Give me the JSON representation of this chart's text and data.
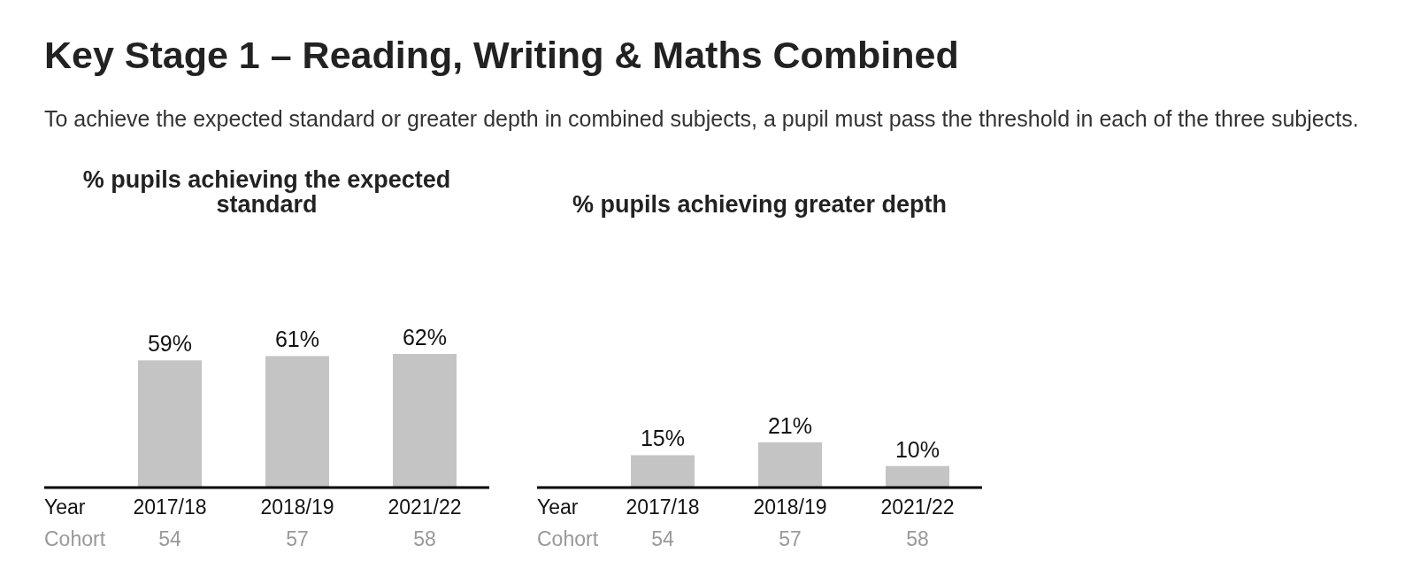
{
  "chart_data": [
    {
      "type": "bar",
      "title": "% pupils achieving the expected standard",
      "xlabel": "Year",
      "categories": [
        "2017/18",
        "2018/19",
        "2021/22"
      ],
      "values": [
        59,
        61,
        62
      ],
      "color": "#c4c4c4",
      "data_labels": true,
      "value_labels": [
        "59%",
        "61%",
        "62%"
      ],
      "annotations": [
        "Cohort",
        "54",
        "57",
        "58",
        "Key Stage 1 – Reading, Writing & Maths Combined",
        "To achieve the expected standard or greater depth in combined subjects, a pupil must pass the threshold in each of the three subjects."
      ]
    },
    {
      "type": "bar",
      "title": "% pupils achieving greater depth",
      "xlabel": "Year",
      "categories": [
        "2017/18",
        "2018/19",
        "2021/22"
      ],
      "values": [
        15,
        21,
        10
      ],
      "color": "#c4c4c4",
      "data_labels": true,
      "value_labels": [
        "15%",
        "21%",
        "10%"
      ],
      "annotations": [
        "Cohort",
        "54",
        "57",
        "58"
      ]
    }
  ]
}
